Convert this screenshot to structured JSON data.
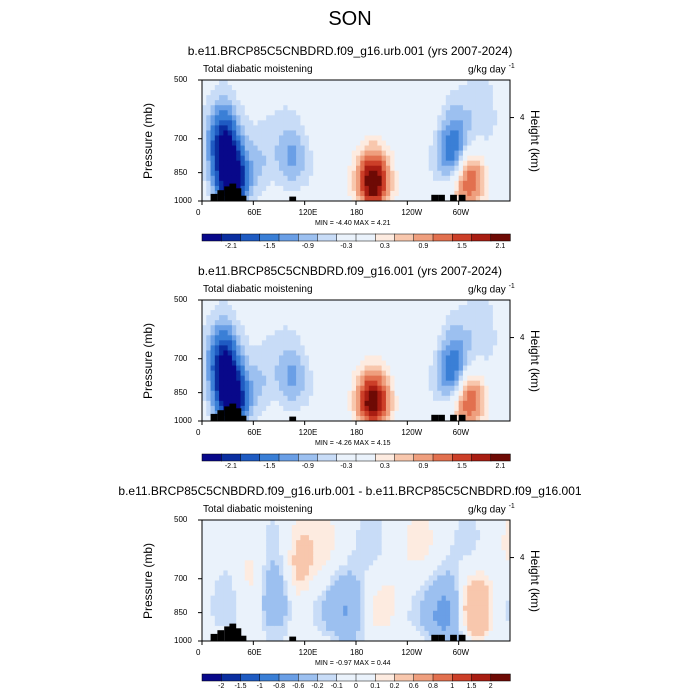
{
  "main_title": "SON",
  "panels": [
    {
      "title": "b.e11.BRCP85C5CNBDRD.f09_g16.urb.001 (yrs 2007-2024)",
      "subtitle": "Total diabatic moistening",
      "units": "g/kg day",
      "units_exp": "-1",
      "minmax": "MIN = -4.40  MAX =  4.21"
    },
    {
      "title": "b.e11.BRCP85C5CNBDRD.f09_g16.001 (yrs 2007-2024)",
      "subtitle": "Total diabatic moistening",
      "units": "g/kg day",
      "units_exp": "-1",
      "minmax": "MIN = -4.26  MAX =  4.15"
    },
    {
      "title": "b.e11.BRCP85C5CNBDRD.f09_g16.urb.001 - b.e11.BRCP85C5CNBDRD.f09_g16.001",
      "subtitle": "Total diabatic moistening",
      "units": "g/kg day",
      "units_exp": "-1",
      "minmax": "MIN = -0.97  MAX =  0.44"
    }
  ],
  "axes": {
    "ylabel": "Pressure (mb)",
    "ylabel_right": "Height (km)",
    "yticks": [
      "500",
      "700",
      "850",
      "1000"
    ],
    "yticks_right": [
      "4"
    ],
    "xticks": [
      "0",
      "60E",
      "120E",
      "180",
      "120W",
      "60W"
    ]
  },
  "chart_data": [
    {
      "type": "heatmap",
      "title": "b.e11.BRCP85C5CNBDRD.f09_g16.urb.001 (yrs 2007-2024)",
      "ylabel": "Pressure (mb)",
      "ylabel_right": "Height (km)",
      "x_range": [
        0,
        360
      ],
      "y_range": [
        1000,
        500
      ],
      "colorbar_labels": [
        "-2.1",
        "-1.5",
        "-0.9",
        "-0.3",
        "0.3",
        "0.9",
        "1.5",
        "2.1"
      ],
      "colorbar_levels": [
        -2.1,
        -1.8,
        -1.5,
        -1.2,
        -0.9,
        -0.6,
        -0.3,
        0,
        0.3,
        0.6,
        0.9,
        1.2,
        1.5,
        1.8,
        2.1
      ],
      "min": -4.4,
      "max": 4.21,
      "features": [
        {
          "lon": 25,
          "p": 700,
          "value": -2.0
        },
        {
          "lon": 35,
          "p": 900,
          "value": -2.4
        },
        {
          "lon": 70,
          "p": 800,
          "value": -0.6
        },
        {
          "lon": 105,
          "p": 780,
          "value": -1.0
        },
        {
          "lon": 200,
          "p": 900,
          "value": 2.4
        },
        {
          "lon": 295,
          "p": 760,
          "value": -1.9
        },
        {
          "lon": 310,
          "p": 880,
          "value": 1.8
        },
        {
          "lon": 330,
          "p": 620,
          "value": -0.5
        }
      ]
    },
    {
      "type": "heatmap",
      "title": "b.e11.BRCP85C5CNBDRD.f09_g16.001 (yrs 2007-2024)",
      "ylabel": "Pressure (mb)",
      "ylabel_right": "Height (km)",
      "x_range": [
        0,
        360
      ],
      "y_range": [
        1000,
        500
      ],
      "colorbar_labels": [
        "-2.1",
        "-1.5",
        "-0.9",
        "-0.3",
        "0.3",
        "0.9",
        "1.5",
        "2.1"
      ],
      "colorbar_levels": [
        -2.1,
        -1.8,
        -1.5,
        -1.2,
        -0.9,
        -0.6,
        -0.3,
        0,
        0.3,
        0.6,
        0.9,
        1.2,
        1.5,
        1.8,
        2.1
      ],
      "min": -4.26,
      "max": 4.15,
      "features": [
        {
          "lon": 25,
          "p": 700,
          "value": -2.0
        },
        {
          "lon": 35,
          "p": 900,
          "value": -2.3
        },
        {
          "lon": 70,
          "p": 800,
          "value": -0.6
        },
        {
          "lon": 105,
          "p": 780,
          "value": -1.0
        },
        {
          "lon": 200,
          "p": 900,
          "value": 2.3
        },
        {
          "lon": 295,
          "p": 760,
          "value": -1.9
        },
        {
          "lon": 310,
          "p": 880,
          "value": 1.8
        },
        {
          "lon": 330,
          "p": 620,
          "value": -0.5
        }
      ]
    },
    {
      "type": "heatmap",
      "title": "b.e11.BRCP85C5CNBDRD.f09_g16.urb.001 - b.e11.BRCP85C5CNBDRD.f09_g16.001",
      "ylabel": "Pressure (mb)",
      "ylabel_right": "Height (km)",
      "x_range": [
        0,
        360
      ],
      "y_range": [
        1000,
        500
      ],
      "colorbar_labels": [
        "-2",
        "-1.5",
        "-1",
        "-0.8",
        "-0.6",
        "-0.2",
        "-0.1",
        "0",
        "0.1",
        "0.2",
        "0.6",
        "0.8",
        "1",
        "1.5",
        "2"
      ],
      "colorbar_levels": [
        -2,
        -1.5,
        -1,
        -0.8,
        -0.6,
        -0.2,
        -0.1,
        0,
        0.1,
        0.2,
        0.6,
        0.8,
        1,
        1.5,
        2
      ],
      "min": -0.97,
      "max": 0.44,
      "features": [
        {
          "lon": 30,
          "p": 620,
          "value": -0.2
        },
        {
          "lon": 60,
          "p": 700,
          "value": 0.2
        },
        {
          "lon": 85,
          "p": 800,
          "value": -0.6
        },
        {
          "lon": 110,
          "p": 650,
          "value": 0.3
        },
        {
          "lon": 170,
          "p": 840,
          "value": -0.6
        },
        {
          "lon": 220,
          "p": 780,
          "value": 0.1
        },
        {
          "lon": 285,
          "p": 860,
          "value": -0.8
        },
        {
          "lon": 320,
          "p": 830,
          "value": 0.4
        }
      ]
    }
  ],
  "colors": {
    "palette": [
      "#08088a",
      "#0a2ea0",
      "#1f5bc2",
      "#3a7fd6",
      "#6a9fe6",
      "#9cc0f0",
      "#c8dcf7",
      "#eaf2fb",
      "#fdebe0",
      "#f8c7ad",
      "#ef9f7e",
      "#e2704f",
      "#cc3f28",
      "#a81d12",
      "#6e0a05"
    ]
  }
}
